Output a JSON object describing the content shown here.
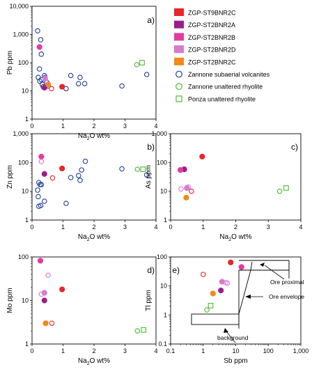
{
  "legend": {
    "items": [
      {
        "label": "ZGP-ST9BNR2C",
        "kind": "solid",
        "color": "#e8262b"
      },
      {
        "label": "ZGP-ST2BNR2A",
        "kind": "solid",
        "color": "#9b1f8a"
      },
      {
        "label": "ZGP-ST2BNR2B",
        "kind": "solid",
        "color": "#e23c9e"
      },
      {
        "label": "ZGP-ST2BNR2D",
        "kind": "solid",
        "color": "#d67bcf"
      },
      {
        "label": "ZGP-ST2BNR2C",
        "kind": "solid",
        "color": "#f08a1c"
      },
      {
        "label": "Zannone subaerial volcanites",
        "kind": "open-circle",
        "color": "#1f3f9a"
      },
      {
        "label": "Zannone unaltered rhyolite",
        "kind": "open-circle",
        "color": "#4cbb2e"
      },
      {
        "label": "Ponza   unaltered rhyolite",
        "kind": "open-square",
        "color": "#4cbb2e"
      }
    ]
  },
  "chart_data": [
    {
      "id": "a",
      "panel_label": "a)",
      "type": "scatter",
      "xlabel_main": "Na",
      "xlabel_sub": "2",
      "xlabel_tail": "O wt%",
      "ylabel": "Pb ppm",
      "xscale": "linear",
      "yscale": "log",
      "xlim": [
        0,
        4
      ],
      "ylim": [
        1,
        10000
      ],
      "xticks": [
        0,
        1,
        2,
        3,
        4
      ],
      "xticklabels": [
        "0",
        "1",
        "2",
        "3",
        "4"
      ],
      "yticks": [
        1,
        10,
        100,
        1000,
        10000
      ],
      "yticklabels": [
        "1",
        "10",
        "100",
        "1,000",
        "10,000"
      ],
      "series": [
        {
          "name": "Zannone subaerial volcanites",
          "marker": "open-circle",
          "color": "#1f3f9a",
          "points": [
            [
              0.18,
              1350
            ],
            [
              0.28,
              650
            ],
            [
              0.3,
              200
            ],
            [
              0.24,
              60
            ],
            [
              0.2,
              30
            ],
            [
              0.25,
              22
            ],
            [
              0.3,
              25
            ],
            [
              0.33,
              17
            ],
            [
              0.36,
              14
            ],
            [
              0.4,
              35
            ],
            [
              0.42,
              30
            ],
            [
              0.48,
              20
            ],
            [
              0.52,
              15
            ],
            [
              1.1,
              12
            ],
            [
              1.25,
              35
            ],
            [
              1.5,
              18
            ],
            [
              1.55,
              30
            ],
            [
              1.7,
              18
            ],
            [
              2.9,
              15
            ],
            [
              3.7,
              38
            ]
          ]
        },
        {
          "name": "Zannone unaltered rhyolite",
          "marker": "open-circle",
          "color": "#4cbb2e",
          "points": [
            [
              3.38,
              85
            ]
          ]
        },
        {
          "name": "Ponza   unaltered rhyolite",
          "marker": "open-square",
          "color": "#4cbb2e",
          "points": [
            [
              3.55,
              100
            ]
          ]
        },
        {
          "name": "ZGP-ST9BNR2C",
          "marker": "solid",
          "color": "#e8262b",
          "points": [
            [
              0.97,
              14
            ]
          ]
        },
        {
          "name": "ZGP-ST2BNR2A",
          "marker": "solid",
          "color": "#9b1f8a",
          "points": [
            [
              0.4,
              13
            ]
          ]
        },
        {
          "name": "ZGP-ST2BNR2B",
          "marker": "solid",
          "color": "#e23c9e",
          "points": [
            [
              0.24,
              360
            ]
          ]
        },
        {
          "name": "ZGP-ST2BNR2D",
          "marker": "solid",
          "color": "#d67bcf",
          "points": [
            [
              0.42,
              28
            ]
          ]
        },
        {
          "name": "ZGP-ST2BNR2C",
          "marker": "solid",
          "color": "#f08a1c",
          "points": [
            [
              0.52,
              17
            ]
          ]
        },
        {
          "name": "",
          "marker": "open-circle",
          "color": "#e8262b",
          "points": [
            [
              0.63,
              12
            ]
          ]
        },
        {
          "name": "",
          "marker": "open-circle",
          "color": "#d67bcf",
          "points": [
            [
              0.45,
              22
            ]
          ]
        }
      ]
    },
    {
      "id": "b",
      "panel_label": "b)",
      "type": "scatter",
      "xlabel_main": "Na",
      "xlabel_sub": "2",
      "xlabel_tail": "O wt%",
      "ylabel": "Zn ppm",
      "xscale": "linear",
      "yscale": "log",
      "xlim": [
        0,
        4
      ],
      "ylim": [
        1,
        1000
      ],
      "xticks": [
        0,
        1,
        2,
        3,
        4
      ],
      "xticklabels": [
        "0",
        "1",
        "2",
        "3",
        "4"
      ],
      "yticks": [
        1,
        10,
        100,
        1000
      ],
      "yticklabels": [
        "1",
        "10",
        "100",
        "1,000"
      ],
      "series": [
        {
          "name": "Zannone subaerial volcanites",
          "marker": "open-circle",
          "color": "#1f3f9a",
          "points": [
            [
              0.18,
              11
            ],
            [
              0.22,
              20
            ],
            [
              0.26,
              17
            ],
            [
              0.3,
              17
            ],
            [
              0.2,
              6.5
            ],
            [
              0.22,
              3
            ],
            [
              0.28,
              3.2
            ],
            [
              0.4,
              4.5
            ],
            [
              1.1,
              3.8
            ],
            [
              1.25,
              30
            ],
            [
              1.5,
              35
            ],
            [
              1.55,
              24
            ],
            [
              1.6,
              55
            ],
            [
              1.72,
              110
            ],
            [
              2.9,
              60
            ],
            [
              3.7,
              37
            ]
          ]
        },
        {
          "name": "Zannone unaltered rhyolite",
          "marker": "open-circle",
          "color": "#4cbb2e",
          "points": [
            [
              3.4,
              58
            ]
          ]
        },
        {
          "name": "Ponza   unaltered rhyolite",
          "marker": "open-square",
          "color": "#4cbb2e",
          "points": [
            [
              3.58,
              58
            ]
          ]
        },
        {
          "name": "ZGP-ST9BNR2C",
          "marker": "solid",
          "color": "#e8262b",
          "points": [
            [
              0.97,
              62
            ]
          ]
        },
        {
          "name": "ZGP-ST2BNR2A",
          "marker": "solid",
          "color": "#9b1f8a",
          "points": [
            [
              0.4,
              40
            ]
          ]
        },
        {
          "name": "ZGP-ST2BNR2B",
          "marker": "solid",
          "color": "#e23c9e",
          "points": [
            [
              0.3,
              160
            ]
          ]
        },
        {
          "name": "ZGP-ST2BNR2D",
          "marker": "solid",
          "color": "#d67bcf",
          "points": []
        },
        {
          "name": "ZGP-ST2BNR2C",
          "marker": "solid",
          "color": "#f08a1c",
          "points": []
        },
        {
          "name": "",
          "marker": "open-circle",
          "color": "#e8262b",
          "points": [
            [
              0.66,
              29
            ]
          ]
        },
        {
          "name": "",
          "marker": "open-circle",
          "color": "#d67bcf",
          "points": [
            [
              0.3,
              108
            ]
          ]
        }
      ]
    },
    {
      "id": "c",
      "panel_label": "c)",
      "type": "scatter",
      "xlabel_main": "Na",
      "xlabel_sub": "2",
      "xlabel_tail": "O wt%",
      "ylabel": "As ppm",
      "xscale": "linear",
      "yscale": "log",
      "xlim": [
        0,
        4
      ],
      "ylim": [
        1,
        1000
      ],
      "xticks": [
        0,
        1,
        2,
        3,
        4
      ],
      "xticklabels": [
        "0",
        "1",
        "2",
        "3",
        "4"
      ],
      "yticks": [
        1,
        10,
        100,
        1000
      ],
      "yticklabels": [
        "1",
        "10",
        "100",
        "1,000"
      ],
      "series": [
        {
          "name": "Zannone unaltered rhyolite",
          "marker": "open-circle",
          "color": "#4cbb2e",
          "points": [
            [
              3.35,
              10
            ]
          ]
        },
        {
          "name": "Ponza   unaltered rhyolite",
          "marker": "open-square",
          "color": "#4cbb2e",
          "points": [
            [
              3.55,
              13
            ]
          ]
        },
        {
          "name": "ZGP-ST9BNR2C",
          "marker": "solid",
          "color": "#e8262b",
          "points": [
            [
              0.97,
              160
            ]
          ]
        },
        {
          "name": "ZGP-ST2BNR2A",
          "marker": "solid",
          "color": "#9b1f8a",
          "points": [
            [
              0.42,
              58
            ]
          ]
        },
        {
          "name": "ZGP-ST2BNR2B",
          "marker": "solid",
          "color": "#e23c9e",
          "points": [
            [
              0.3,
              55
            ]
          ]
        },
        {
          "name": "ZGP-ST2BNR2D",
          "marker": "solid",
          "color": "#d67bcf",
          "points": [
            [
              0.5,
              13
            ]
          ]
        },
        {
          "name": "ZGP-ST2BNR2C",
          "marker": "solid",
          "color": "#f08a1c",
          "points": [
            [
              0.48,
              6
            ]
          ]
        },
        {
          "name": "",
          "marker": "open-circle",
          "color": "#e8262b",
          "points": [
            [
              0.64,
              10
            ]
          ]
        },
        {
          "name": "",
          "marker": "open-circle",
          "color": "#d67bcf",
          "points": [
            [
              0.32,
              12
            ],
            [
              0.55,
              14
            ]
          ]
        }
      ]
    },
    {
      "id": "d",
      "panel_label": "d)",
      "type": "scatter",
      "xlabel_main": "Na",
      "xlabel_sub": "2",
      "xlabel_tail": "O wt%",
      "ylabel": "Mo ppm",
      "xscale": "linear",
      "yscale": "log",
      "xlim": [
        0,
        4
      ],
      "ylim": [
        1,
        100
      ],
      "xticks": [
        0,
        1,
        2,
        3,
        4
      ],
      "xticklabels": [
        "0",
        "1",
        "2",
        "3",
        "4"
      ],
      "yticks": [
        1,
        10,
        100
      ],
      "yticklabels": [
        "1",
        "10",
        "100"
      ],
      "series": [
        {
          "name": "Zannone unaltered rhyolite",
          "marker": "open-circle",
          "color": "#4cbb2e",
          "points": [
            [
              3.4,
              2
            ]
          ]
        },
        {
          "name": "Ponza   unaltered rhyolite",
          "marker": "open-square",
          "color": "#4cbb2e",
          "points": [
            [
              3.6,
              2.1
            ]
          ]
        },
        {
          "name": "ZGP-ST9BNR2C",
          "marker": "solid",
          "color": "#e8262b",
          "points": [
            [
              0.97,
              18
            ]
          ]
        },
        {
          "name": "ZGP-ST2BNR2A",
          "marker": "solid",
          "color": "#9b1f8a",
          "points": [
            [
              0.4,
              10
            ]
          ]
        },
        {
          "name": "ZGP-ST2BNR2B",
          "marker": "solid",
          "color": "#e23c9e",
          "points": [
            [
              0.27,
              82
            ]
          ]
        },
        {
          "name": "ZGP-ST2BNR2D",
          "marker": "solid",
          "color": "#d67bcf",
          "points": [
            [
              0.4,
              15
            ]
          ]
        },
        {
          "name": "ZGP-ST2BNR2C",
          "marker": "solid",
          "color": "#f08a1c",
          "points": [
            [
              0.44,
              3
            ]
          ]
        },
        {
          "name": "",
          "marker": "open-circle",
          "color": "#e8262b",
          "points": [
            [
              0.64,
              3
            ]
          ]
        },
        {
          "name": "",
          "marker": "open-circle",
          "color": "#d67bcf",
          "points": [
            [
              0.52,
              38
            ],
            [
              0.3,
              14
            ]
          ]
        }
      ]
    },
    {
      "id": "e",
      "panel_label": "e)",
      "type": "scatter",
      "xlabel_main": "Sb ppm",
      "xlabel_sub": "",
      "xlabel_tail": "",
      "ylabel": "Tl ppm",
      "xscale": "log",
      "yscale": "log",
      "xlim": [
        0.1,
        1000
      ],
      "ylim": [
        0.1,
        100
      ],
      "xticks": [
        0.1,
        1,
        10,
        100,
        1000
      ],
      "xticklabels": [
        "0.1",
        "1",
        "10",
        "100",
        "1,000"
      ],
      "yticks": [
        0.1,
        1,
        10,
        100
      ],
      "yticklabels": [
        "0.1",
        "1",
        "10",
        "100"
      ],
      "annotations": [
        "Ore proximal",
        "Ore envelope",
        "background"
      ],
      "series": [
        {
          "name": "Zannone unaltered rhyolite",
          "marker": "open-circle",
          "color": "#4cbb2e",
          "points": [
            [
              1.3,
              1.5
            ]
          ]
        },
        {
          "name": "Ponza   unaltered rhyolite",
          "marker": "open-square",
          "color": "#4cbb2e",
          "points": [
            [
              1.7,
              2.1
            ]
          ]
        },
        {
          "name": "ZGP-ST9BNR2C",
          "marker": "solid",
          "color": "#e8262b",
          "points": [
            [
              7,
              65
            ]
          ]
        },
        {
          "name": "ZGP-ST2BNR2A",
          "marker": "solid",
          "color": "#9b1f8a",
          "points": [
            [
              3.5,
              7
            ]
          ]
        },
        {
          "name": "ZGP-ST2BNR2B",
          "marker": "solid",
          "color": "#e23c9e",
          "points": [
            [
              15,
              45
            ]
          ]
        },
        {
          "name": "ZGP-ST2BNR2D",
          "marker": "solid",
          "color": "#d67bcf",
          "points": [
            [
              3.8,
              14
            ]
          ]
        },
        {
          "name": "ZGP-ST2BNR2C",
          "marker": "solid",
          "color": "#f08a1c",
          "points": [
            [
              2,
              5.5
            ]
          ]
        },
        {
          "name": "",
          "marker": "open-circle",
          "color": "#e8262b",
          "points": [
            [
              1,
              25
            ]
          ]
        },
        {
          "name": "",
          "marker": "open-circle",
          "color": "#d67bcf",
          "points": [
            [
              5,
              13
            ],
            [
              5.6,
              12.5
            ]
          ]
        }
      ]
    }
  ]
}
